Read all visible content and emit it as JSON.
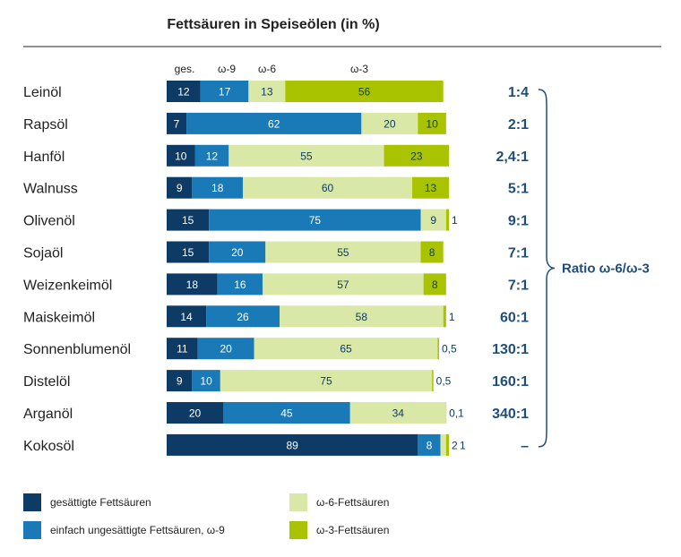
{
  "chart_data": {
    "type": "stacked-bar-horizontal",
    "title": "Fettsäuren in Speiseölen (in %)",
    "column_headers": [
      "ges.",
      "ω-9",
      "ω-6",
      "ω-3"
    ],
    "series": [
      {
        "key": "sat",
        "name": "gesättigte Fettsäuren",
        "color": "#0d3b66",
        "label_color": "#ffffff"
      },
      {
        "key": "o9",
        "name": "einfach ungesättigte Fettsäuren, ω-9",
        "color": "#1a7ab8",
        "label_color": "#ffffff"
      },
      {
        "key": "o6",
        "name": "ω-6-Fettsäuren",
        "color": "#d9e8a6",
        "label_color": "#0d3b66"
      },
      {
        "key": "o3",
        "name": "ω-3-Fettsäuren",
        "color": "#a9c300",
        "label_color": "#0d3b66"
      }
    ],
    "categories": [
      "Leinöl",
      "Rapsöl",
      "Hanföl",
      "Walnuss",
      "Olivenöl",
      "Sojaöl",
      "Weizenkeimöl",
      "Maiskeimöl",
      "Sonnenblumenöl",
      "Distelöl",
      "Arganöl",
      "Kokosöl"
    ],
    "rows": [
      {
        "name": "Leinöl",
        "values": [
          12,
          17,
          13,
          56
        ],
        "labels": [
          "12",
          "17",
          "13",
          "56"
        ],
        "ratio": "1:4"
      },
      {
        "name": "Rapsöl",
        "values": [
          7,
          62,
          20,
          10
        ],
        "labels": [
          "7",
          "62",
          "20",
          "10"
        ],
        "ratio": "2:1"
      },
      {
        "name": "Hanföl",
        "values": [
          10,
          12,
          55,
          23
        ],
        "labels": [
          "10",
          "12",
          "55",
          "23"
        ],
        "ratio": "2,4:1"
      },
      {
        "name": "Walnuss",
        "values": [
          9,
          18,
          60,
          13
        ],
        "labels": [
          "9",
          "18",
          "60",
          "13"
        ],
        "ratio": "5:1"
      },
      {
        "name": "Olivenöl",
        "values": [
          15,
          75,
          9,
          1
        ],
        "labels": [
          "15",
          "75",
          "9",
          "1"
        ],
        "ratio": "9:1"
      },
      {
        "name": "Sojaöl",
        "values": [
          15,
          20,
          55,
          8
        ],
        "labels": [
          "15",
          "20",
          "55",
          "8"
        ],
        "ratio": "7:1"
      },
      {
        "name": "Weizenkeimöl",
        "values": [
          18,
          16,
          57,
          8
        ],
        "labels": [
          "18",
          "16",
          "57",
          "8"
        ],
        "ratio": "7:1"
      },
      {
        "name": "Maiskeimöl",
        "values": [
          14,
          26,
          58,
          1
        ],
        "labels": [
          "14",
          "26",
          "58",
          "1"
        ],
        "ratio": "60:1"
      },
      {
        "name": "Sonnenblumenöl",
        "values": [
          11,
          20,
          65,
          0.5
        ],
        "labels": [
          "11",
          "20",
          "65",
          "0,5"
        ],
        "ratio": "130:1"
      },
      {
        "name": "Distelöl",
        "values": [
          9,
          10,
          75,
          0.5
        ],
        "labels": [
          "9",
          "10",
          "75",
          "0,5"
        ],
        "ratio": "160:1"
      },
      {
        "name": "Arganöl",
        "values": [
          20,
          45,
          34,
          0.1
        ],
        "labels": [
          "20",
          "45",
          "34",
          "0,1"
        ],
        "ratio": "340:1"
      },
      {
        "name": "Kokosöl",
        "values": [
          89,
          8,
          2,
          1
        ],
        "labels": [
          "89",
          "8",
          "2",
          "1"
        ],
        "ratio": "–"
      }
    ],
    "ratio_label": "Ratio ω-6/ω-3",
    "xlim": [
      0,
      100
    ],
    "legend_position": "bottom"
  }
}
